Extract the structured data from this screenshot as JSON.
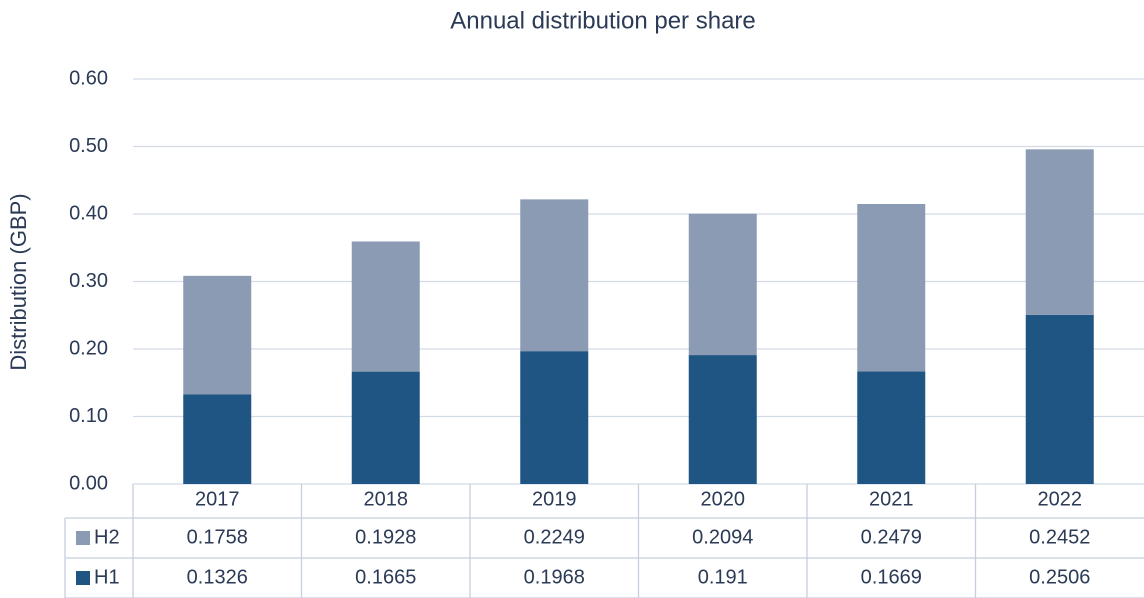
{
  "chart_data": {
    "type": "stacked_bar",
    "title": "Annual distribution per share",
    "y_label": "Distribution (GBP)",
    "categories": [
      "2017",
      "2018",
      "2019",
      "2020",
      "2021",
      "2022"
    ],
    "series": [
      {
        "name": "H1",
        "color": "#1f5582",
        "values": [
          0.1326,
          0.1665,
          0.1968,
          0.191,
          0.1669,
          0.2506
        ]
      },
      {
        "name": "H2",
        "color": "#8a9bb3",
        "values": [
          0.1758,
          0.1928,
          0.2249,
          0.2094,
          0.2479,
          0.2452
        ]
      }
    ],
    "ylim": [
      0,
      0.6
    ],
    "yticks": [
      {
        "value": 0,
        "label": "0.00"
      },
      {
        "value": 0.1,
        "label": "0.10"
      },
      {
        "value": 0.2,
        "label": "0.20"
      },
      {
        "value": 0.3,
        "label": "0.30"
      },
      {
        "value": 0.4,
        "label": "0.40"
      },
      {
        "value": 0.5,
        "label": "0.50"
      },
      {
        "value": 0.6,
        "label": "0.60"
      }
    ],
    "grid": true,
    "data_table": true
  }
}
